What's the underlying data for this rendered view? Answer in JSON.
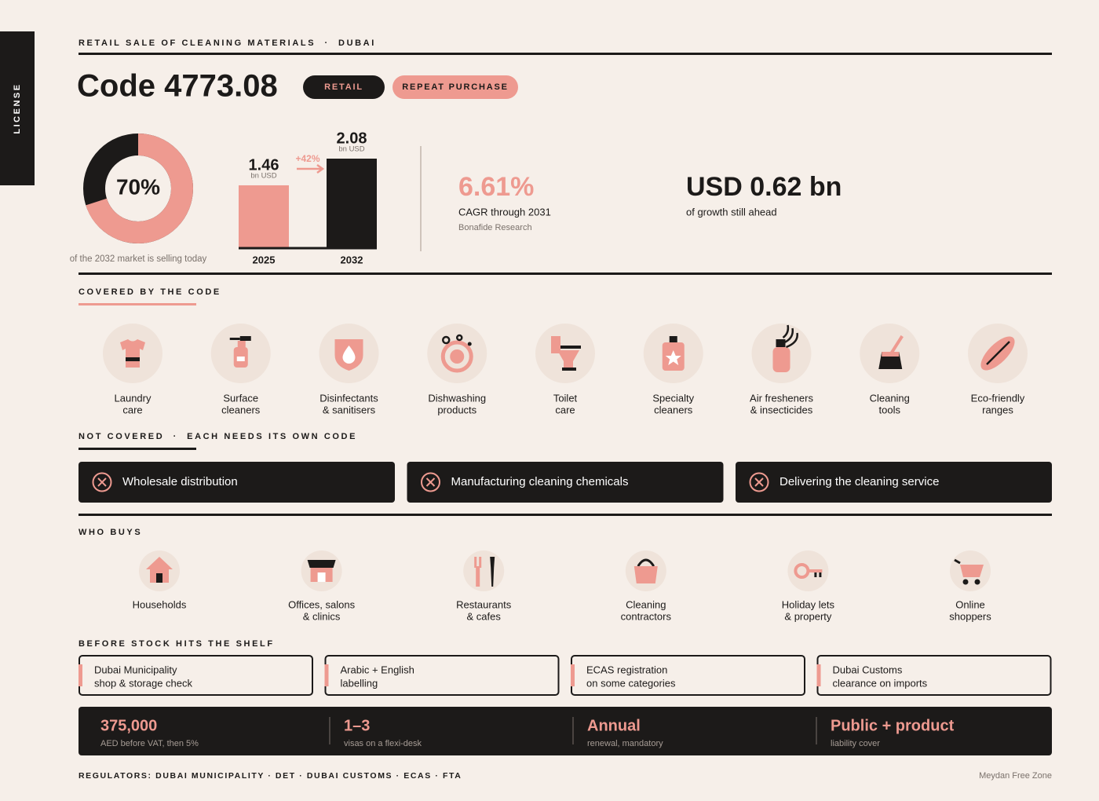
{
  "header": {
    "side_tab": "LICENSE",
    "kicker": "RETAIL SALE OF CLEANING MATERIALS  ·  DUBAI",
    "title": "Code 4773.08",
    "tags": [
      "RETAIL",
      "REPEAT PURCHASE"
    ]
  },
  "chart_data": [
    {
      "type": "pie",
      "values": [
        70
      ],
      "value_labels": [
        "70%"
      ],
      "caption": "of the 2032 market is selling today"
    },
    {
      "type": "bar",
      "categories": [
        "2025",
        "2032"
      ],
      "values": [
        1.46,
        2.08
      ],
      "unit": "bn USD",
      "annotation": "+42%"
    }
  ],
  "stats": [
    {
      "value": "6.61%",
      "label": "CAGR through 2031",
      "source": "Bonafide Research"
    },
    {
      "value": "USD 0.62 bn",
      "label": "of growth still ahead"
    }
  ],
  "covered": {
    "title": "COVERED BY THE CODE",
    "items": [
      [
        "Laundry",
        "care"
      ],
      [
        "Surface",
        "cleaners"
      ],
      [
        "Disinfectants",
        "& sanitisers"
      ],
      [
        "Dishwashing",
        "products"
      ],
      [
        "Toilet",
        "care"
      ],
      [
        "Specialty",
        "cleaners"
      ],
      [
        "Air fresheners",
        "& insecticides"
      ],
      [
        "Cleaning",
        "tools"
      ],
      [
        "Eco-friendly",
        "ranges"
      ]
    ]
  },
  "not_covered": {
    "title": "NOT COVERED  ·  EACH NEEDS ITS OWN CODE",
    "items": [
      "Wholesale distribution",
      "Manufacturing cleaning chemicals",
      "Delivering the cleaning service"
    ]
  },
  "buyers": {
    "title": "WHO BUYS",
    "items": [
      [
        "Households"
      ],
      [
        "Offices, salons",
        "& clinics"
      ],
      [
        "Restaurants",
        "& cafes"
      ],
      [
        "Cleaning",
        "contractors"
      ],
      [
        "Holiday lets",
        "& property"
      ],
      [
        "Online",
        "shoppers"
      ]
    ]
  },
  "before_shelf": {
    "title": "BEFORE STOCK HITS THE SHELF",
    "items": [
      [
        "Dubai Municipality",
        "shop & storage check"
      ],
      [
        "Arabic + English",
        "labelling"
      ],
      [
        "ECAS registration",
        "on some categories"
      ],
      [
        "Dubai Customs",
        "clearance on imports"
      ]
    ]
  },
  "facts": [
    {
      "value": "375,000",
      "label": "AED before VAT, then 5%"
    },
    {
      "value": "1–3",
      "label": "visas on a flexi-desk"
    },
    {
      "value": "Annual",
      "label": "renewal, mandatory"
    },
    {
      "value": "Public + product",
      "label": "liability cover"
    }
  ],
  "footer": {
    "regulators": "REGULATORS: DUBAI MUNICIPALITY · DET · DUBAI CUSTOMS · ECAS · FTA",
    "zone": "Meydan Free Zone"
  }
}
